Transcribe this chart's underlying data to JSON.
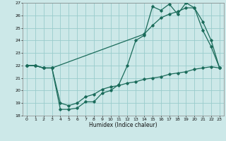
{
  "xlabel": "Humidex (Indice chaleur)",
  "bg_color": "#cce8e8",
  "grid_color": "#99cccc",
  "line_color": "#1a6b5a",
  "xlim": [
    -0.5,
    23.5
  ],
  "ylim": [
    18,
    27
  ],
  "xticks": [
    0,
    1,
    2,
    3,
    4,
    5,
    6,
    7,
    8,
    9,
    10,
    11,
    12,
    13,
    14,
    15,
    16,
    17,
    18,
    19,
    20,
    21,
    22,
    23
  ],
  "yticks": [
    18,
    19,
    20,
    21,
    22,
    23,
    24,
    25,
    26,
    27
  ],
  "line1_x": [
    0,
    1,
    2,
    3,
    4,
    5,
    6,
    7,
    8,
    9,
    10,
    11,
    12,
    13,
    14,
    15,
    16,
    17,
    18,
    19,
    20,
    21,
    22,
    23
  ],
  "line1_y": [
    22.0,
    22.0,
    21.8,
    21.8,
    18.5,
    18.5,
    18.6,
    19.1,
    19.1,
    19.8,
    20.0,
    20.5,
    22.0,
    24.0,
    24.4,
    26.7,
    26.4,
    26.9,
    26.1,
    27.0,
    26.6,
    24.8,
    23.5,
    21.8
  ],
  "line2_x": [
    0,
    1,
    2,
    3,
    4,
    5,
    6,
    7,
    8,
    9,
    10,
    11,
    12,
    13,
    14,
    15,
    16,
    17,
    18,
    19,
    20,
    21,
    22,
    23
  ],
  "line2_y": [
    22.0,
    22.0,
    21.8,
    21.8,
    19.0,
    18.8,
    19.0,
    19.5,
    19.7,
    20.1,
    20.3,
    20.4,
    20.6,
    20.7,
    20.9,
    21.0,
    21.1,
    21.3,
    21.4,
    21.5,
    21.7,
    21.8,
    21.9,
    21.8
  ],
  "line3_x": [
    0,
    1,
    2,
    3,
    14,
    15,
    16,
    17,
    18,
    19,
    20,
    21,
    22,
    23
  ],
  "line3_y": [
    22.0,
    22.0,
    21.8,
    21.8,
    24.5,
    25.2,
    25.8,
    26.1,
    26.3,
    26.6,
    26.6,
    25.5,
    24.0,
    21.8
  ]
}
